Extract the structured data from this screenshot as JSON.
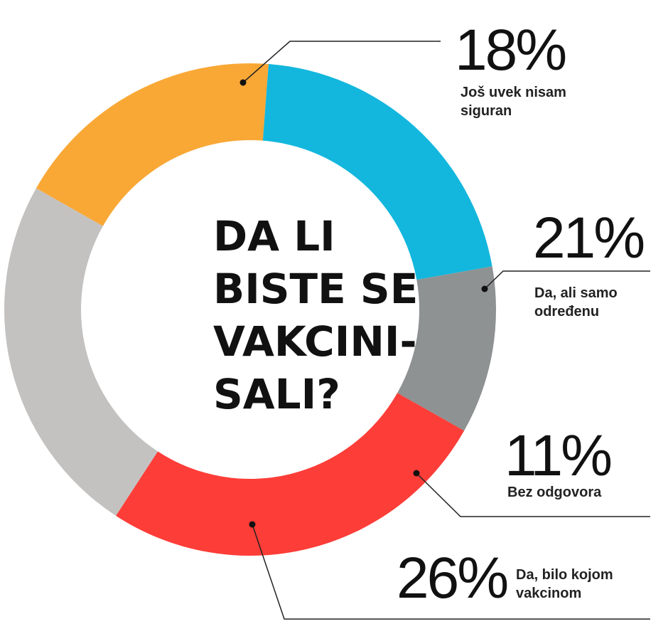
{
  "chart_data": {
    "type": "pie",
    "variant": "donut",
    "title_lines": [
      "DA LI",
      "BISTE SE",
      "VAKCINI-",
      "SALI?"
    ],
    "slices": [
      {
        "percent_label": "18%",
        "value": 18,
        "label_lines": [
          "Još uvek nisam",
          "siguran"
        ],
        "color": "#f9a836"
      },
      {
        "percent_label": "21%",
        "value": 21,
        "label_lines": [
          "Da, ali samo",
          "određenu"
        ],
        "color": "#13b7dd"
      },
      {
        "percent_label": "11%",
        "value": 11,
        "label_lines": [
          "Bez odgovora"
        ],
        "color": "#8e9293"
      },
      {
        "percent_label": "26%",
        "value": 26,
        "label_lines": [
          "Da, bilo kojom",
          "vakcinom"
        ],
        "color": "#fd3d38"
      },
      {
        "value": 24,
        "color": "#c4c2c1"
      }
    ]
  }
}
